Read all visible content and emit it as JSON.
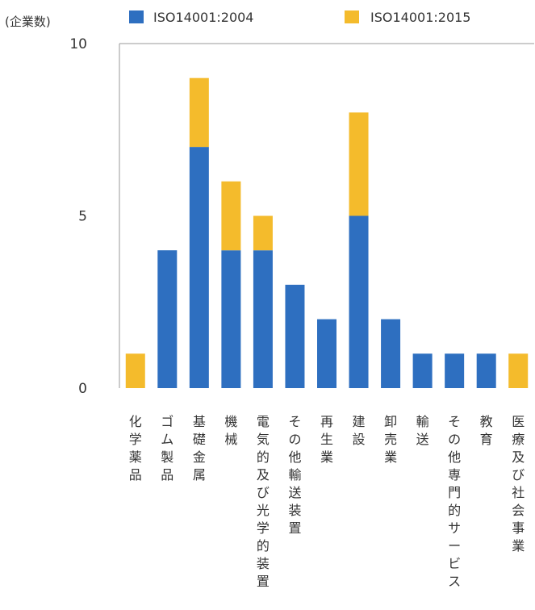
{
  "chart_data": {
    "type": "bar",
    "stacked": true,
    "ylabel": "(企業数)",
    "ylim": [
      0,
      10
    ],
    "yticks": [
      0,
      5,
      10
    ],
    "grid": false,
    "legend_position": "top",
    "categories": [
      "化学薬品",
      "ゴム製品",
      "基礎金属",
      "機械",
      "電気的及び光学的装置",
      "その他輸送装置",
      "再生業",
      "建設",
      "卸売業",
      "輸送",
      "その他専門的サービス",
      "教育",
      "医療及び社会事業"
    ],
    "series": [
      {
        "name": "ISO14001:2004",
        "color": "#2e6fc0",
        "values": [
          0,
          4,
          7,
          4,
          4,
          3,
          2,
          5,
          2,
          1,
          1,
          1,
          0
        ]
      },
      {
        "name": "ISO14001:2015",
        "color": "#f4bb2c",
        "values": [
          1,
          0,
          2,
          2,
          1,
          0,
          0,
          3,
          0,
          0,
          0,
          0,
          1
        ]
      }
    ]
  }
}
